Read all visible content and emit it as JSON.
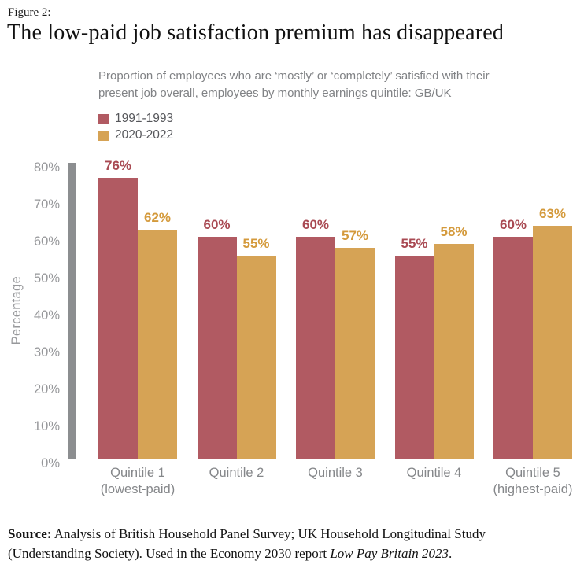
{
  "figure_label": "Figure 2:",
  "title": "The low-paid job satisfaction premium has disappeared",
  "subtitle": {
    "line1": "Proportion of employees who are ‘mostly’ or ‘completely’ satisfied with their",
    "line2": "present job overall, employees by monthly earnings quintile: GB/UK"
  },
  "chart_data": {
    "type": "bar",
    "title": "The low-paid job satisfaction premium has disappeared",
    "subtitle": "Proportion of employees who are ‘mostly’ or ‘completely’ satisfied with their present job overall, employees by monthly earnings quintile: GB/UK",
    "categories": [
      [
        "Quintile 1",
        "(lowest-paid)"
      ],
      [
        "Quintile 2"
      ],
      [
        "Quintile 3"
      ],
      [
        "Quintile 4"
      ],
      [
        "Quintile 5",
        "(highest-paid)"
      ]
    ],
    "series": [
      {
        "name": "1991-1993",
        "color": "#b15a62",
        "label_color": "#a94a53",
        "values": [
          76,
          60,
          60,
          55,
          60
        ]
      },
      {
        "name": "2020-2022",
        "color": "#d6a355",
        "label_color": "#d49a3c",
        "values": [
          62,
          55,
          57,
          58,
          63
        ]
      }
    ],
    "ylabel": "Percentage",
    "ylim": [
      0,
      80
    ],
    "yticks": [
      "0%",
      "10%",
      "20%",
      "30%",
      "40%",
      "50%",
      "60%",
      "70%",
      "80%"
    ],
    "value_suffix": "%",
    "grid": false,
    "legend_position": "top-left",
    "axis_bar_color": "#8c8e90"
  },
  "source": {
    "line1_bold": "Source:",
    "line1_rest": " Analysis of British Household Panel Survey; UK Household Longitudinal Study",
    "line2_pre": "(Understanding Society). Used in the Economy 2030 report ",
    "line2_italic": "Low Pay Britain 2023",
    "line2_post": "."
  }
}
